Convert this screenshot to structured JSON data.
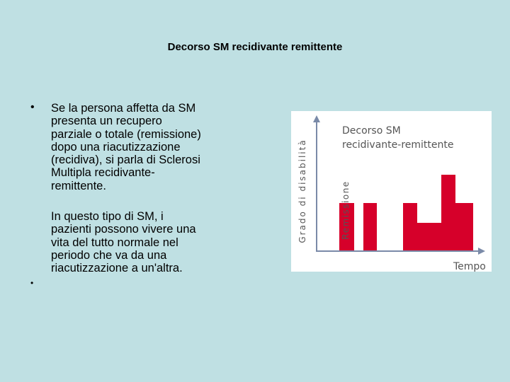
{
  "title": "Decorso SM recidivante remittente",
  "paragraphs": [
    [
      "Se la persona affetta da SM",
      "presenta un recupero",
      "parziale o totale (remissione)",
      "dopo una riacutizzazione",
      "(recidiva), si parla di Sclerosi",
      "Multipla recidivante-",
      "remittente."
    ],
    [
      "In questo tipo di SM, i",
      "pazienti possono vivere una",
      "vita del tutto normale nel",
      "periodo che va da una",
      "riacutizzazione a un'altra."
    ]
  ],
  "figure": {
    "title": [
      "Decorso SM",
      "recidivante-remittente"
    ],
    "y_label": "Grado di disabilità",
    "annotation": "Remissione",
    "x_label": "Tempo"
  }
}
